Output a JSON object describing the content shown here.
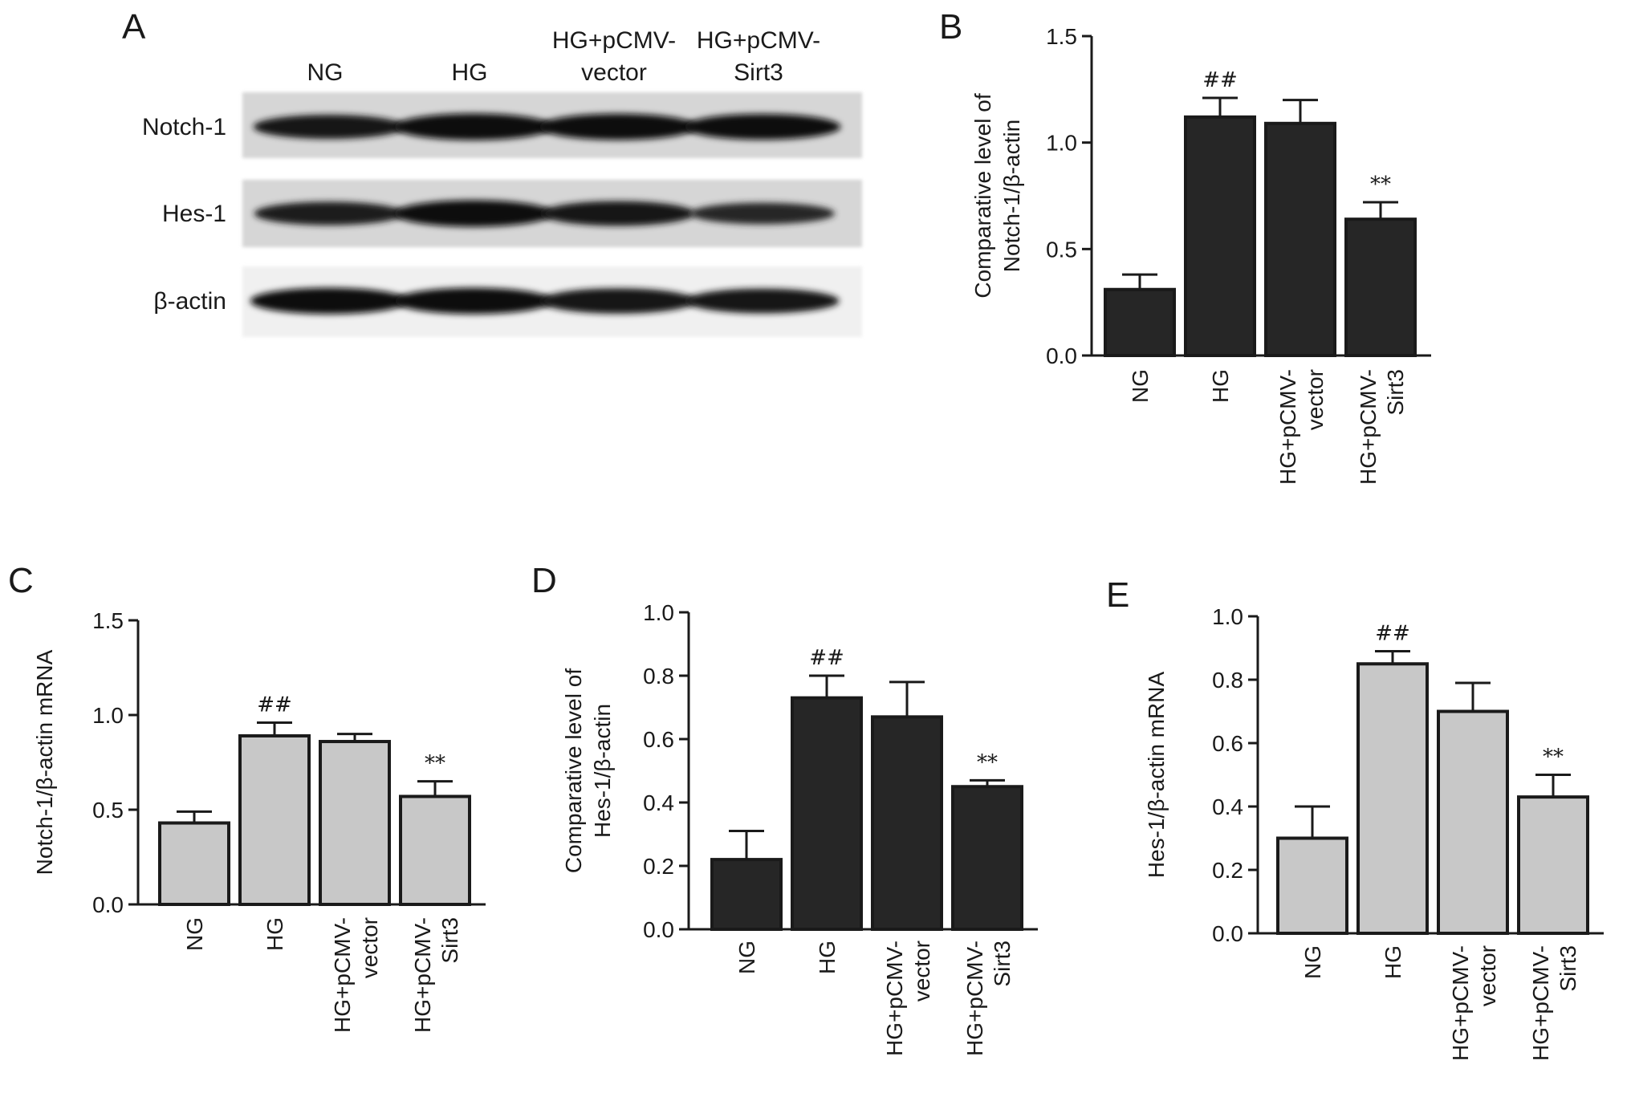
{
  "colors": {
    "dark_bar": "#262626",
    "light_bar": "#c8c8c8",
    "axis": "#1a1a1a",
    "annotation_hash": "#1a1a1a",
    "annotation_star": "#555555"
  },
  "panel_a": {
    "letter": "A",
    "lanes": [
      {
        "line1": "NG",
        "line2": ""
      },
      {
        "line1": "HG",
        "line2": ""
      },
      {
        "line1": "HG+pCMV-",
        "line2": "vector"
      },
      {
        "line1": "HG+pCMV-",
        "line2": "Sirt3"
      }
    ],
    "rows": [
      {
        "label": "Notch-1",
        "band_intensity": [
          0.75,
          0.95,
          0.92,
          0.88
        ]
      },
      {
        "label": "Hes-1",
        "band_intensity": [
          0.7,
          0.95,
          0.8,
          0.55
        ]
      },
      {
        "label": "β-actin",
        "band_intensity": [
          0.92,
          0.92,
          0.85,
          0.8
        ]
      }
    ]
  },
  "chart_data": [
    {
      "panel": "B",
      "type": "bar",
      "categories": [
        [
          "NG"
        ],
        [
          "HG"
        ],
        [
          "HG+pCMV-",
          "vector"
        ],
        [
          "HG+pCMV-",
          "Sirt3"
        ]
      ],
      "values": [
        0.31,
        1.12,
        1.09,
        0.64
      ],
      "errors": [
        0.07,
        0.09,
        0.11,
        0.08
      ],
      "annotations": [
        "",
        "##",
        "",
        "**"
      ],
      "ylabel": [
        "Comparative level of",
        "Notch-1/β-actin"
      ],
      "ylim": [
        0,
        1.5
      ],
      "yticks": [
        "0.0",
        "0.5",
        "1.0",
        "1.5"
      ],
      "bar_color": "#262626"
    },
    {
      "panel": "C",
      "type": "bar",
      "categories": [
        [
          "NG"
        ],
        [
          "HG"
        ],
        [
          "HG+pCMV-",
          "vector"
        ],
        [
          "HG+pCMV-",
          "Sirt3"
        ]
      ],
      "values": [
        0.43,
        0.89,
        0.86,
        0.57
      ],
      "errors": [
        0.06,
        0.07,
        0.04,
        0.08
      ],
      "annotations": [
        "",
        "##",
        "",
        "**"
      ],
      "ylabel": [
        "Notch-1/β-actin mRNA"
      ],
      "ylim": [
        0,
        1.5
      ],
      "yticks": [
        "0.0",
        "0.5",
        "1.0",
        "1.5"
      ],
      "bar_color": "#c8c8c8"
    },
    {
      "panel": "D",
      "type": "bar",
      "categories": [
        [
          "NG"
        ],
        [
          "HG"
        ],
        [
          "HG+pCMV-",
          "vector"
        ],
        [
          "HG+pCMV-",
          "Sirt3"
        ]
      ],
      "values": [
        0.22,
        0.73,
        0.67,
        0.45
      ],
      "errors": [
        0.09,
        0.07,
        0.11,
        0.02
      ],
      "annotations": [
        "",
        "##",
        "",
        "**"
      ],
      "ylabel": [
        "Comparative level of",
        "Hes-1/β-actin"
      ],
      "ylim": [
        0,
        1.0
      ],
      "yticks": [
        "0.0",
        "0.2",
        "0.4",
        "0.6",
        "0.8",
        "1.0"
      ],
      "bar_color": "#262626"
    },
    {
      "panel": "E",
      "type": "bar",
      "categories": [
        [
          "NG"
        ],
        [
          "HG"
        ],
        [
          "HG+pCMV-",
          "vector"
        ],
        [
          "HG+pCMV-",
          "Sirt3"
        ]
      ],
      "values": [
        0.3,
        0.85,
        0.7,
        0.43
      ],
      "errors": [
        0.1,
        0.04,
        0.09,
        0.07
      ],
      "annotations": [
        "",
        "##",
        "",
        "**"
      ],
      "ylabel": [
        "Hes-1/β-actin mRNA"
      ],
      "ylim": [
        0,
        1.0
      ],
      "yticks": [
        "0.0",
        "0.2",
        "0.4",
        "0.6",
        "0.8",
        "1.0"
      ],
      "bar_color": "#c8c8c8"
    }
  ]
}
